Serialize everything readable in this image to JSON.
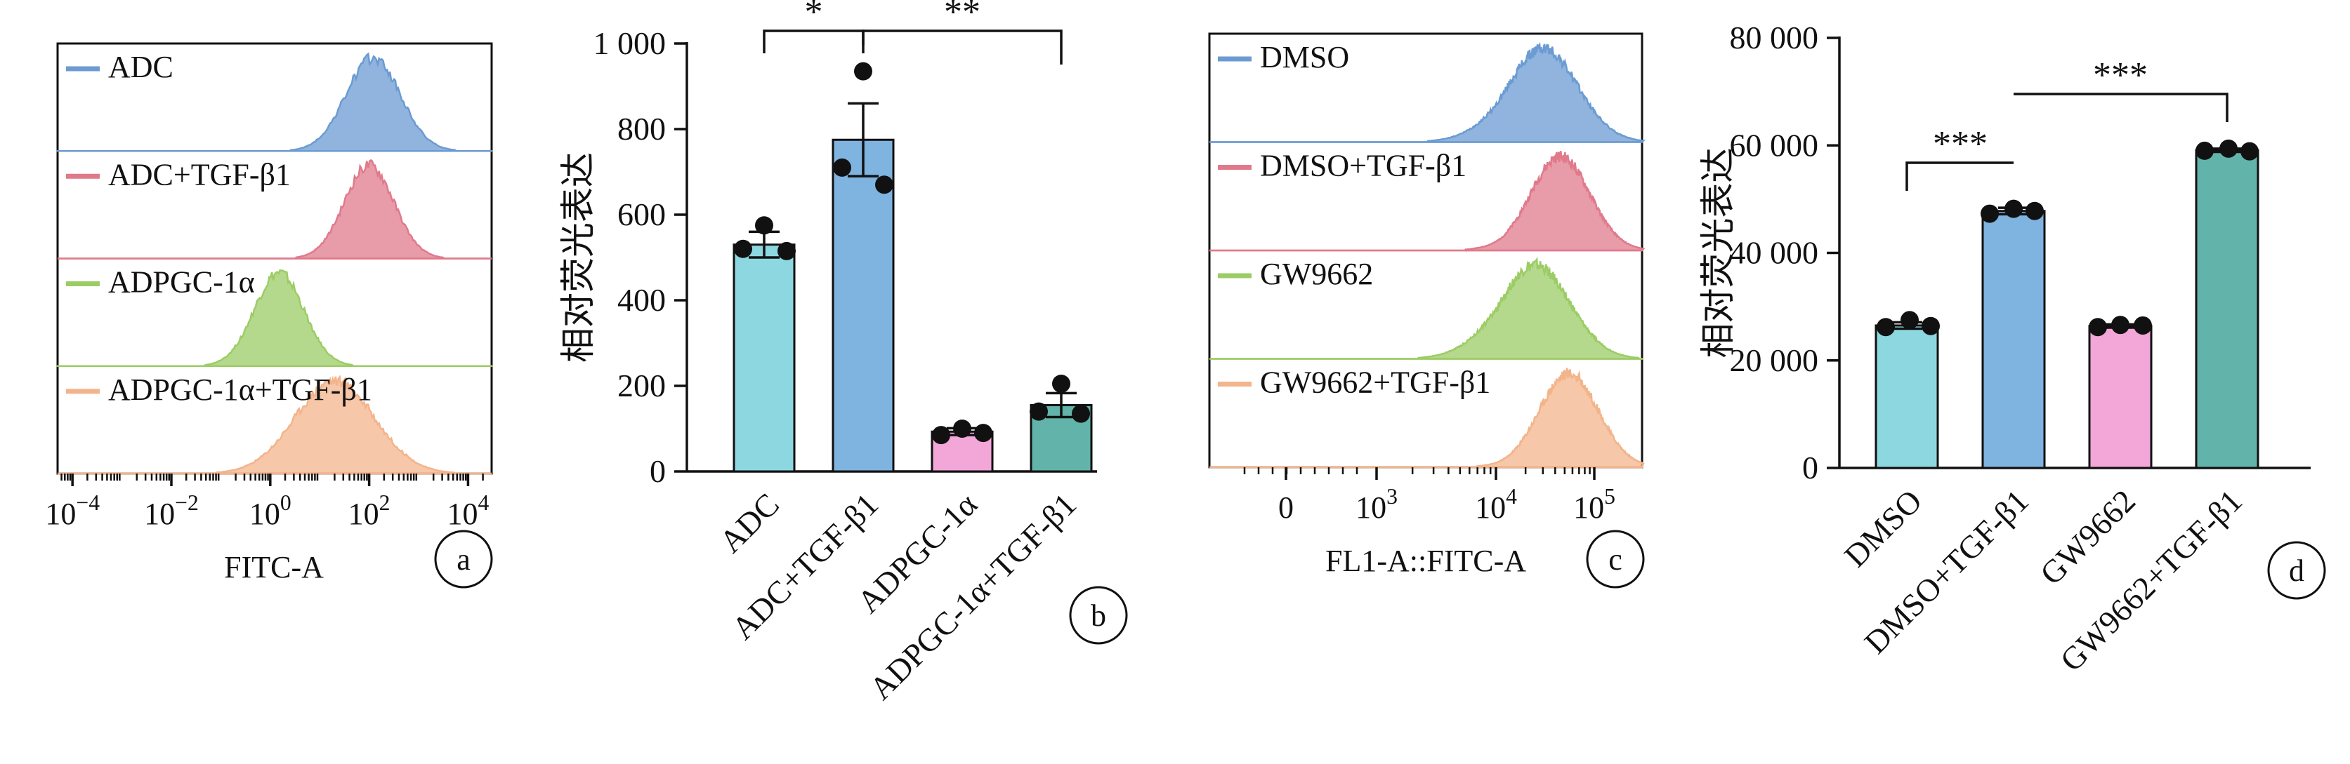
{
  "panels": {
    "a": {
      "label": "a"
    },
    "b": {
      "label": "b"
    },
    "c": {
      "label": "c"
    },
    "d": {
      "label": "d"
    }
  },
  "chart_data": [
    {
      "id": "a",
      "type": "area",
      "xlabel": "FITC-A",
      "xscale": "log",
      "xlim": [
        5e-05,
        30000
      ],
      "xticks": [
        {
          "base": "10",
          "exp": "−4"
        },
        {
          "base": "10",
          "exp": "−2"
        },
        {
          "base": "10",
          "exp": "0"
        },
        {
          "base": "10",
          "exp": "2"
        },
        {
          "base": "10",
          "exp": "4"
        }
      ],
      "series": [
        {
          "name": "ADC",
          "color": "#6b9bd2",
          "peak_x": 120,
          "spread_decades": 0.55
        },
        {
          "name": "ADC+TGF-β1",
          "color": "#e07a8b",
          "peak_x": 100,
          "spread_decades": 0.5
        },
        {
          "name": "ADPGC-1α",
          "color": "#9ccc65",
          "peak_x": 1.5,
          "spread_decades": 0.5
        },
        {
          "name": "ADPGC-1α+TGF-β1",
          "color": "#f3b48b",
          "peak_x": 20,
          "spread_decades": 0.8
        }
      ]
    },
    {
      "id": "b",
      "type": "bar",
      "ylabel": "相对荧光表达",
      "ylim": [
        0,
        1000
      ],
      "yticks": [
        0,
        200,
        400,
        600,
        800,
        1000
      ],
      "ytick_labels": [
        "0",
        "200",
        "400",
        "600",
        "800",
        "1 000"
      ],
      "categories": [
        "ADC",
        "ADC+TGF-β1",
        "ADPGC-1α",
        "ADPGC-1α+TGF-β1"
      ],
      "values": [
        530,
        775,
        93,
        155
      ],
      "errors": [
        30,
        85,
        8,
        28
      ],
      "colors": [
        "#8dd8e0",
        "#7fb3e0",
        "#f3a6d8",
        "#62b3aa"
      ],
      "points": [
        [
          575,
          520,
          515
        ],
        [
          935,
          710,
          670
        ],
        [
          85,
          100,
          90
        ],
        [
          205,
          140,
          135
        ]
      ],
      "significance": [
        {
          "from": 0,
          "to": 1,
          "text": "*"
        },
        {
          "from": 1,
          "to": 3,
          "text": "**"
        }
      ]
    },
    {
      "id": "c",
      "type": "area",
      "xlabel": "FL1-A::FITC-A",
      "xscale": "biexponential",
      "xlim": [
        -600,
        200000
      ],
      "xticks": [
        {
          "base": "0",
          "exp": ""
        },
        {
          "base": "10",
          "exp": "3"
        },
        {
          "base": "10",
          "exp": "4"
        },
        {
          "base": "10",
          "exp": "5"
        }
      ],
      "series": [
        {
          "name": "DMSO",
          "color": "#6b9bd2",
          "peak_x": 30000,
          "spread_decades": 0.35
        },
        {
          "name": "DMSO+TGF-β1",
          "color": "#e07a8b",
          "peak_x": 45000,
          "spread_decades": 0.3
        },
        {
          "name": "GW9662",
          "color": "#9ccc65",
          "peak_x": 25000,
          "spread_decades": 0.35
        },
        {
          "name": "GW9662+TGF-β1",
          "color": "#f3b48b",
          "peak_x": 55000,
          "spread_decades": 0.3
        }
      ]
    },
    {
      "id": "d",
      "type": "bar",
      "ylabel": "相对荧光表达",
      "ylim": [
        0,
        80000
      ],
      "yticks": [
        0,
        20000,
        40000,
        60000,
        80000
      ],
      "ytick_labels": [
        "0",
        "20 000",
        "40 000",
        "60 000",
        "80 000"
      ],
      "categories": [
        "DMSO",
        "DMSO+TGF-β1",
        "GW9662",
        "GW9662+TGF-β1"
      ],
      "values": [
        26500,
        47800,
        26400,
        59100
      ],
      "errors": [
        600,
        600,
        300,
        300
      ],
      "colors": [
        "#8dd8e0",
        "#7fb3e0",
        "#f3a6d8",
        "#62b3aa"
      ],
      "points": [
        [
          26200,
          27500,
          26400
        ],
        [
          47300,
          48200,
          47800
        ],
        [
          26200,
          26600,
          26500
        ],
        [
          59000,
          59400,
          58900
        ]
      ],
      "significance": [
        {
          "from": 0,
          "to": 1,
          "text": "***"
        },
        {
          "from": 1,
          "to": 3,
          "text": "***"
        }
      ]
    }
  ]
}
